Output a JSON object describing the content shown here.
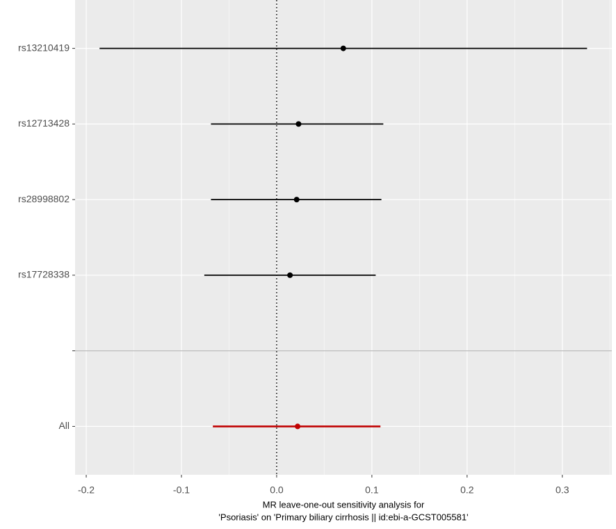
{
  "chart_data": {
    "type": "forest",
    "xlabel": [
      "MR leave-one-out sensitivity analysis for",
      "'Psoriasis' on 'Primary biliary cirrhosis || id:ebi-a-GCST005581'"
    ],
    "categories": [
      "rs13210419",
      "rs12713428",
      "rs28998802",
      "rs17728338",
      null,
      "All"
    ],
    "values": [
      0.07,
      0.023,
      0.021,
      0.014,
      null,
      0.022
    ],
    "lower": [
      -0.186,
      -0.069,
      -0.069,
      -0.076,
      null,
      -0.067
    ],
    "upper": [
      0.326,
      0.112,
      0.11,
      0.104,
      null,
      0.109
    ],
    "colors": [
      "#000000",
      "#000000",
      "#000000",
      "#000000",
      null,
      "#c00000"
    ],
    "xlim": [
      -0.2117,
      0.352
    ],
    "xticks": [
      -0.2,
      -0.1,
      {
        "value": 0,
        "label": "0.0"
      },
      0.1,
      0.2,
      0.3
    ],
    "vline": 0,
    "grid": true
  }
}
